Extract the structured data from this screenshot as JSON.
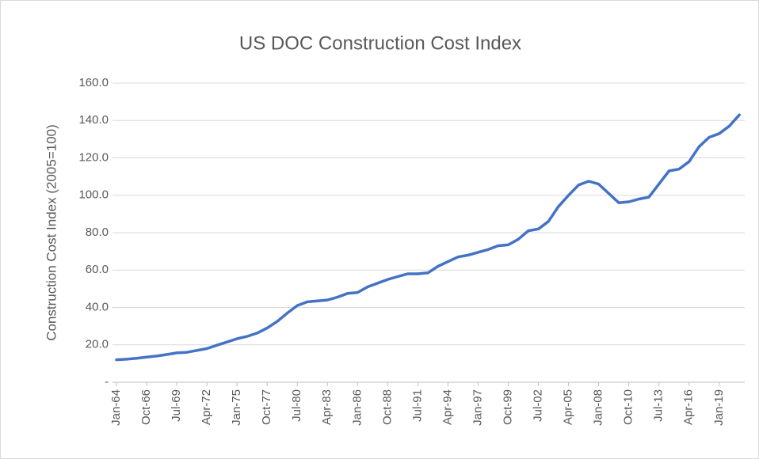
{
  "chart_data": {
    "type": "line",
    "title": "US DOC Construction Cost Index",
    "y_label": "Construction Cost Index (2005=100)",
    "categories": [
      "Jan-64",
      null,
      null,
      "Oct-66",
      null,
      null,
      "Jul-69",
      null,
      null,
      "Apr-72",
      null,
      null,
      "Jan-75",
      null,
      null,
      "Oct-77",
      null,
      null,
      "Jul-80",
      null,
      null,
      "Apr-83",
      null,
      null,
      "Jan-86",
      null,
      null,
      "Oct-88",
      null,
      null,
      "Jul-91",
      null,
      null,
      "Apr-94",
      null,
      null,
      "Jan-97",
      null,
      null,
      "Oct-99",
      null,
      null,
      "Jul-02",
      null,
      null,
      "Apr-05",
      null,
      null,
      "Jan-08",
      null,
      null,
      "Oct-10",
      null,
      null,
      "Jul-13",
      null,
      null,
      "Apr-16",
      null,
      null,
      "Jan-19",
      null,
      null
    ],
    "series": [
      {
        "name": "Construction Cost Index",
        "color": "#4472c4",
        "values": [
          12.0,
          12.3,
          12.8,
          13.4,
          14.0,
          14.8,
          15.7,
          16.0,
          17.0,
          18.0,
          19.8,
          21.5,
          23.3,
          24.5,
          26.3,
          29.0,
          32.5,
          37.0,
          41.0,
          43.0,
          43.5,
          44.0,
          45.5,
          47.5,
          48.0,
          51.0,
          53.0,
          55.0,
          56.5,
          58.0,
          58.0,
          58.5,
          62.0,
          64.5,
          67.0,
          68.0,
          69.5,
          71.0,
          73.0,
          73.5,
          76.5,
          81.0,
          82.0,
          86.0,
          94.0,
          100.0,
          105.5,
          107.5,
          106.0,
          101.0,
          96.0,
          96.5,
          98.0,
          99.0,
          106.0,
          113.0,
          114.0,
          118.0,
          126.0,
          131.0,
          133.0,
          137.0,
          143.0
        ]
      }
    ],
    "ylim": [
      0,
      160
    ],
    "yticks": [
      {
        "value": 0,
        "label": "-"
      },
      {
        "value": 20,
        "label": "20.0"
      },
      {
        "value": 40,
        "label": "40.0"
      },
      {
        "value": 60,
        "label": "60.0"
      },
      {
        "value": 80,
        "label": "80.0"
      },
      {
        "value": 100,
        "label": "100.0"
      },
      {
        "value": 120,
        "label": "120.0"
      },
      {
        "value": 140,
        "label": "140.0"
      },
      {
        "value": 160,
        "label": "160.0"
      }
    ],
    "grid": true
  }
}
